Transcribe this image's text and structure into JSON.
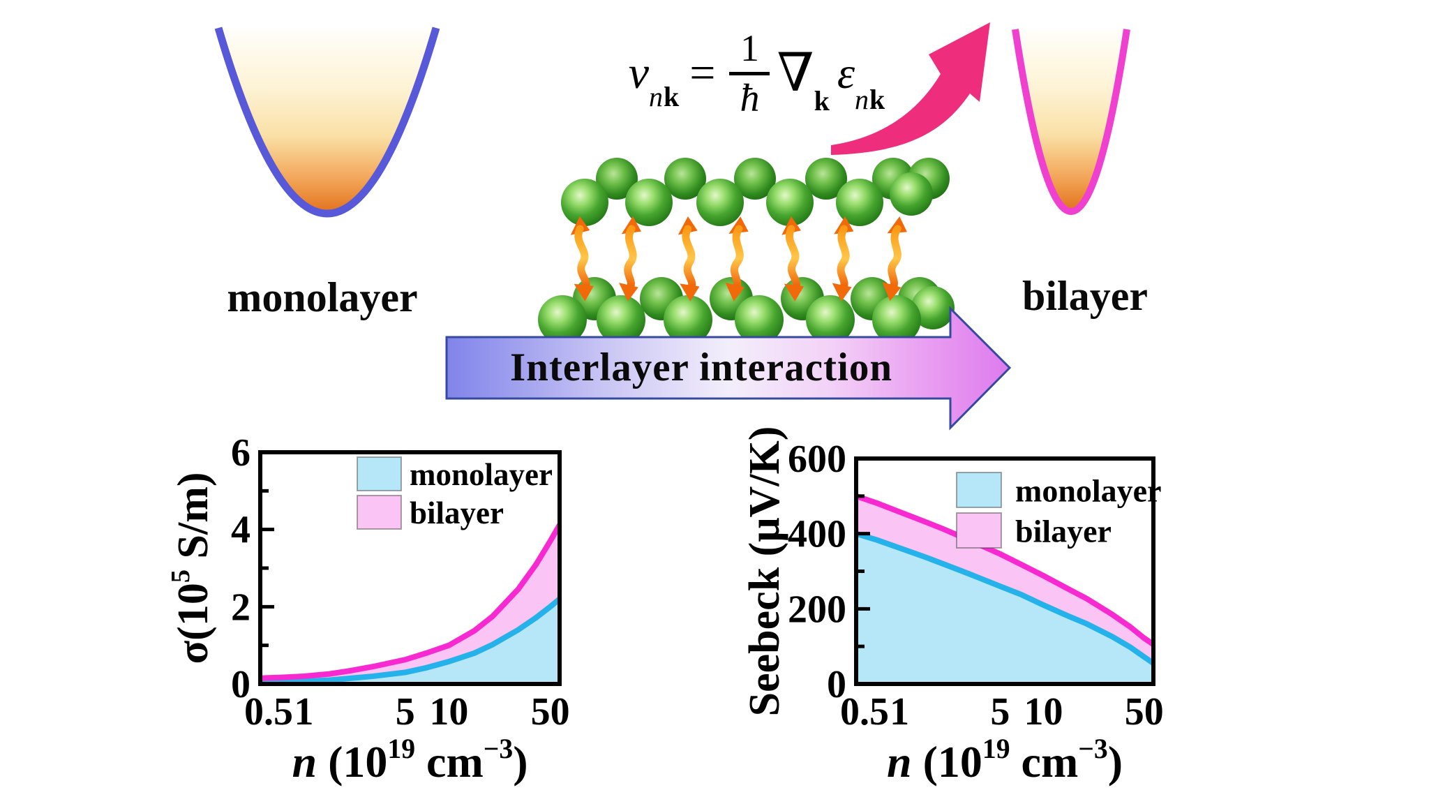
{
  "figure": {
    "monolayer_label": "monolayer",
    "bilayer_label": "bilayer",
    "arrow_label": "Interlayer interaction"
  },
  "equation": {
    "v": "v",
    "v_sub_n": "n",
    "v_sub_k": "k",
    "equals": "=",
    "numerator": "1",
    "hbar": "ħ",
    "nabla": "∇",
    "nabla_sub_k": "k",
    "epsilon": "ε",
    "eps_sub_n": "n",
    "eps_sub_k": "k"
  },
  "colors": {
    "monolayer_band_stroke": "#5859d8",
    "bilayer_band_stroke": "#f040d0",
    "band_fill_bottom": "#e2711c",
    "swoosh_arrow_pink": "#ee2e7d",
    "big_arrow_left": "#8084ea",
    "big_arrow_right": "#dd7bee",
    "big_arrow_outline": "#35499f",
    "atom_green": "#3fa32b",
    "coupling_arrow_orange": "#f9830f",
    "monolayer_series_line": "#25b2ea",
    "monolayer_series_fill": "#b6e7f8",
    "bilayer_series_line": "#f72ad2",
    "bilayer_series_fill": "#fac4f4"
  },
  "chart_data": [
    {
      "type": "area",
      "log_x": true,
      "xlim": [
        0.5,
        58
      ],
      "ylim": [
        0,
        6
      ],
      "yticks_major": [
        2,
        4
      ],
      "yticks_minor": [
        1,
        3,
        5
      ],
      "ytick_labels": [
        {
          "v": 0,
          "t": "0"
        },
        {
          "v": 2,
          "t": "2"
        },
        {
          "v": 4,
          "t": "4"
        },
        {
          "v": 6,
          "t": "6"
        }
      ],
      "xticks": [
        {
          "v": 0.5,
          "t": "0.5"
        },
        {
          "v": 1,
          "t": "1"
        },
        {
          "v": 5,
          "t": "5"
        },
        {
          "v": 10,
          "t": "10"
        },
        {
          "v": 50,
          "t": "50"
        }
      ],
      "x": [
        0.5,
        0.7,
        1,
        1.5,
        2,
        3,
        5,
        7,
        10,
        15,
        20,
        30,
        40,
        50,
        58
      ],
      "series": [
        {
          "name": "monolayer",
          "line_color": "#25b2ea",
          "fill_color": "#b6e7f8",
          "values": [
            0.04,
            0.05,
            0.07,
            0.1,
            0.14,
            0.2,
            0.3,
            0.42,
            0.58,
            0.8,
            1.02,
            1.4,
            1.72,
            2.0,
            2.2
          ]
        },
        {
          "name": "bilayer",
          "line_color": "#f72ad2",
          "fill_color": "#fac4f4",
          "values": [
            0.15,
            0.17,
            0.2,
            0.26,
            0.33,
            0.45,
            0.63,
            0.8,
            1.0,
            1.38,
            1.75,
            2.45,
            3.1,
            3.7,
            4.12
          ]
        }
      ],
      "ylabel_segments": [
        {
          "t": "σ(10"
        },
        {
          "t": "5",
          "sup": true
        },
        {
          "t": " S/m)"
        }
      ],
      "xlabel_segments": [
        {
          "t": "n",
          "italic": true
        },
        {
          "t": " (10"
        },
        {
          "t": "19",
          "sup": true
        },
        {
          "t": " cm"
        },
        {
          "t": "−3",
          "sup": true
        },
        {
          "t": ")"
        }
      ],
      "legend": [
        "monolayer",
        "bilayer"
      ]
    },
    {
      "type": "area",
      "log_x": true,
      "xlim": [
        0.5,
        58
      ],
      "ylim": [
        0,
        600
      ],
      "yticks_major": [
        200,
        400
      ],
      "yticks_minor": [
        100,
        300,
        500
      ],
      "ytick_labels": [
        {
          "v": 0,
          "t": "0"
        },
        {
          "v": 200,
          "t": "200"
        },
        {
          "v": 400,
          "t": "400"
        },
        {
          "v": 600,
          "t": "600"
        }
      ],
      "xticks": [
        {
          "v": 0.5,
          "t": "0.5"
        },
        {
          "v": 1,
          "t": "1"
        },
        {
          "v": 5,
          "t": "5"
        },
        {
          "v": 10,
          "t": "10"
        },
        {
          "v": 50,
          "t": "50"
        }
      ],
      "x": [
        0.5,
        0.7,
        1,
        1.5,
        2,
        3,
        5,
        7,
        10,
        15,
        20,
        30,
        40,
        50,
        58
      ],
      "series": [
        {
          "name": "monolayer",
          "line_color": "#25b2ea",
          "fill_color": "#b6e7f8",
          "values": [
            400,
            383,
            362,
            338,
            320,
            294,
            260,
            238,
            210,
            180,
            160,
            126,
            98,
            72,
            55
          ]
        },
        {
          "name": "bilayer",
          "line_color": "#f72ad2",
          "fill_color": "#fac4f4",
          "values": [
            500,
            481,
            458,
            432,
            413,
            384,
            346,
            318,
            288,
            252,
            227,
            185,
            152,
            122,
            105
          ]
        }
      ],
      "ylabel_segments": [
        {
          "t": "Seebeck (μV/K)"
        }
      ],
      "xlabel_segments": [
        {
          "t": "n",
          "italic": true
        },
        {
          "t": " (10"
        },
        {
          "t": "19",
          "sup": true
        },
        {
          "t": " cm"
        },
        {
          "t": "−3",
          "sup": true
        },
        {
          "t": ")"
        }
      ],
      "legend": [
        "monolayer",
        "bilayer"
      ]
    }
  ]
}
